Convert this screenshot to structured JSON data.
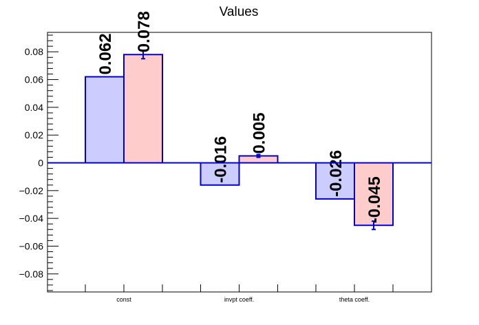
{
  "chart_data": {
    "type": "bar",
    "title": "Values",
    "categories": [
      "const",
      "invpt coeff.",
      "theta coeff."
    ],
    "series": [
      {
        "values": [
          0.062,
          -0.016,
          -0.026
        ],
        "errors": [
          0.0,
          0.0,
          0.0
        ],
        "labels": [
          "0.062",
          "-0.016",
          "-0.026"
        ],
        "fill": "#ccccff",
        "stroke": "#0000cc"
      },
      {
        "values": [
          0.078,
          0.005,
          -0.045
        ],
        "errors": [
          0.003,
          0.001,
          0.003
        ],
        "labels": [
          "0.078",
          "0.005",
          "-0.045"
        ],
        "fill": "#ffcccc",
        "stroke": "#0000cc"
      }
    ],
    "ylim": [
      -0.093,
      0.094
    ],
    "yticks": [
      -0.08,
      -0.06,
      -0.04,
      -0.02,
      0,
      0.02,
      0.04,
      0.06,
      0.08
    ],
    "ytick_labels": [
      "−0.08",
      "−0.06",
      "−0.04",
      "−0.02",
      "0",
      "0.02",
      "0.04",
      "0.06",
      "0.08"
    ],
    "xlabel": "",
    "ylabel": "",
    "grid": false,
    "legend": "none",
    "zero_line_color": "#0000cc",
    "axis_color": "#000000"
  }
}
